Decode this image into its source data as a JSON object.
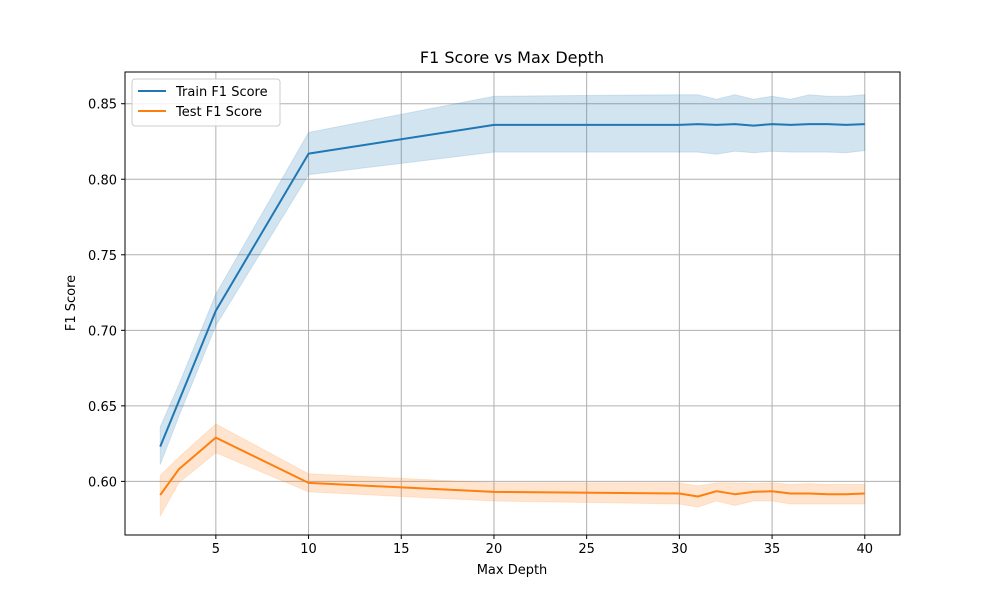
{
  "chart_data": {
    "type": "line",
    "title": "F1 Score vs Max Depth",
    "xlabel": "Max Depth",
    "ylabel": "F1 Score",
    "xlim": [
      0.1,
      41.9
    ],
    "ylim": [
      0.5645,
      0.871
    ],
    "xticks": [
      5,
      10,
      15,
      20,
      25,
      30,
      35,
      40
    ],
    "yticks": [
      0.6,
      0.65,
      0.7,
      0.75,
      0.8,
      0.85
    ],
    "ytick_labels": [
      "0.60",
      "0.65",
      "0.70",
      "0.75",
      "0.80",
      "0.85"
    ],
    "grid": true,
    "legend_position": "top-left",
    "x": [
      2,
      3,
      5,
      10,
      20,
      30,
      31,
      32,
      33,
      34,
      35,
      36,
      37,
      38,
      39,
      40
    ],
    "series": [
      {
        "name": "Train F1 Score",
        "color": "#1f77b4",
        "values": [
          0.623,
          0.653,
          0.713,
          0.817,
          0.836,
          0.836,
          0.8365,
          0.836,
          0.8365,
          0.8355,
          0.8365,
          0.836,
          0.8365,
          0.8365,
          0.836,
          0.8365
        ],
        "upper": [
          0.636,
          0.664,
          0.724,
          0.831,
          0.855,
          0.856,
          0.856,
          0.853,
          0.856,
          0.853,
          0.855,
          0.853,
          0.856,
          0.855,
          0.855,
          0.856
        ],
        "lower": [
          0.611,
          0.643,
          0.703,
          0.803,
          0.818,
          0.818,
          0.818,
          0.8165,
          0.8185,
          0.8175,
          0.8185,
          0.818,
          0.818,
          0.818,
          0.8175,
          0.819
        ]
      },
      {
        "name": "Test F1 Score",
        "color": "#ff7f0e",
        "values": [
          0.591,
          0.608,
          0.629,
          0.599,
          0.593,
          0.592,
          0.59,
          0.5935,
          0.5915,
          0.593,
          0.5935,
          0.592,
          0.592,
          0.5915,
          0.5915,
          0.592
        ],
        "upper": [
          0.604,
          0.616,
          0.638,
          0.605,
          0.599,
          0.599,
          0.597,
          0.599,
          0.599,
          0.5985,
          0.599,
          0.598,
          0.5985,
          0.598,
          0.598,
          0.598
        ],
        "lower": [
          0.577,
          0.599,
          0.619,
          0.593,
          0.587,
          0.585,
          0.583,
          0.587,
          0.584,
          0.587,
          0.587,
          0.585,
          0.585,
          0.585,
          0.585,
          0.585
        ]
      }
    ]
  }
}
